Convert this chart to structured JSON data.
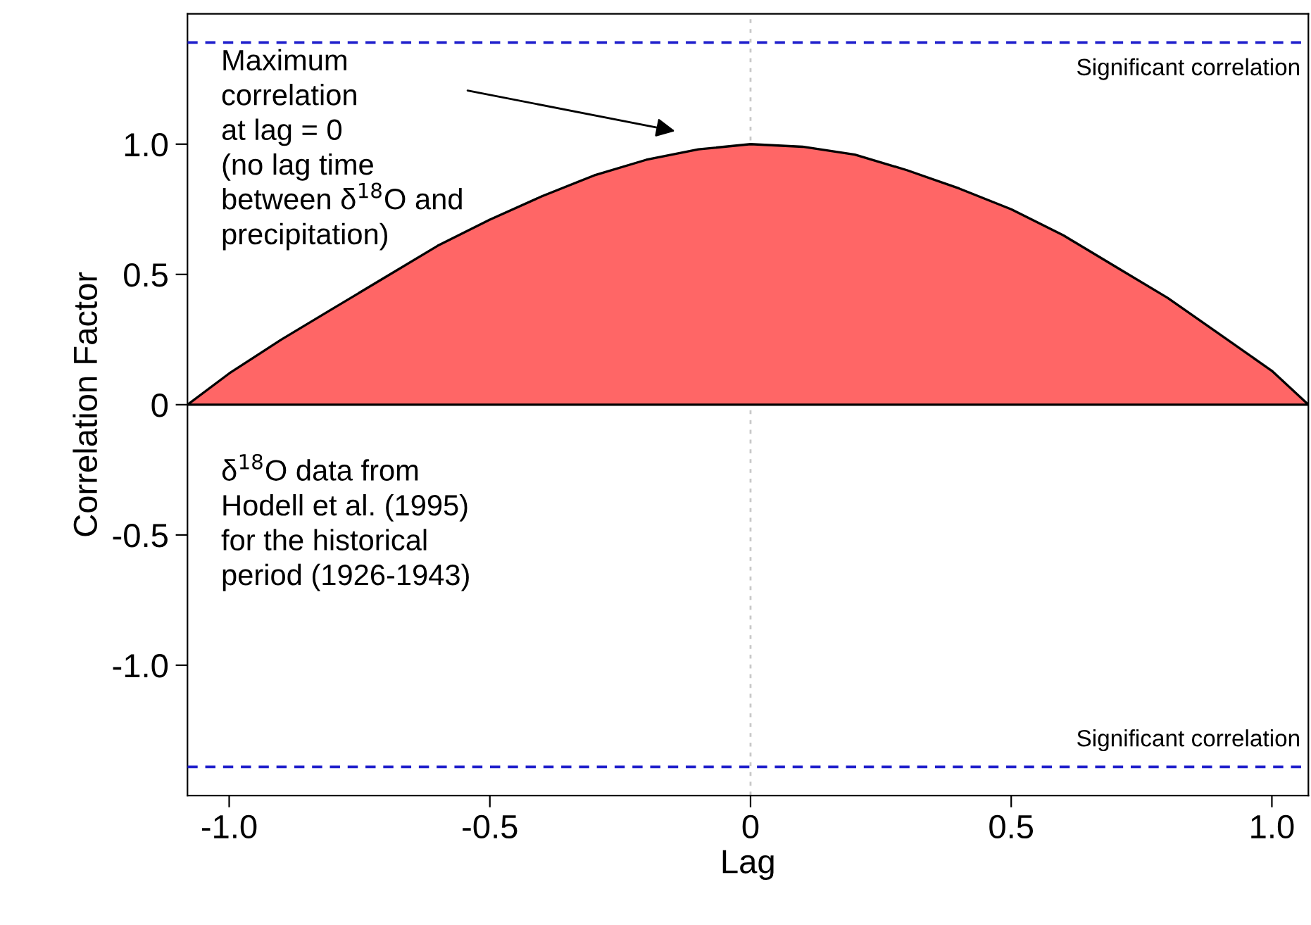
{
  "chart_data": {
    "type": "area",
    "xlabel": "Lag",
    "ylabel": "Correlation Factor",
    "x": [
      -1.08,
      -1.0,
      -0.9,
      -0.8,
      -0.7,
      -0.6,
      -0.5,
      -0.4,
      -0.3,
      -0.2,
      -0.1,
      0,
      0.1,
      0.2,
      0.3,
      0.4,
      0.5,
      0.6,
      0.7,
      0.8,
      0.9,
      1.0,
      1.07
    ],
    "series": [
      {
        "color": "#ff6666",
        "values": [
          0,
          0.12,
          0.25,
          0.37,
          0.49,
          0.61,
          0.71,
          0.8,
          0.88,
          0.94,
          0.98,
          1.0,
          0.99,
          0.96,
          0.9,
          0.83,
          0.75,
          0.65,
          0.53,
          0.41,
          0.27,
          0.13,
          0
        ]
      }
    ],
    "xlim": [
      -1.08,
      1.07
    ],
    "ylim": [
      -1.5,
      1.5
    ],
    "xticks": [
      {
        "value": -1.0,
        "label": "-1.0"
      },
      {
        "value": -0.5,
        "label": "-0.5"
      },
      {
        "value": 0,
        "label": "0"
      },
      {
        "value": 0.5,
        "label": "0.5"
      },
      {
        "value": 1.0,
        "label": "1.0"
      }
    ],
    "yticks": [
      {
        "value": -1.0,
        "label": "-1.0"
      },
      {
        "value": -0.5,
        "label": "-0.5"
      },
      {
        "value": 0,
        "label": "0"
      },
      {
        "value": 0.5,
        "label": "0.5"
      },
      {
        "value": 1.0,
        "label": "1.0"
      }
    ],
    "ref_lines": [
      {
        "axis": "y",
        "value": 1.39,
        "label": "Significant correlation",
        "color": "#1f1fcc",
        "line_style": "dashed"
      },
      {
        "axis": "y",
        "value": -1.39,
        "label": "Significant correlation",
        "color": "#1f1fcc",
        "line_style": "dashed"
      },
      {
        "axis": "x",
        "value": 0,
        "color": "#c8c8c8",
        "line_style": "dotted"
      }
    ],
    "annotations": [
      "Maximum\ncorrelation\nat lag = 0\n(no lag time\nbetween δ$^{18}$O and\nprecipitation)",
      "δ$^{18}$O data from\nHodell et al. (1995)\nfor the historical\nperiod (1926-1943)"
    ],
    "grid": false,
    "legend": false
  }
}
